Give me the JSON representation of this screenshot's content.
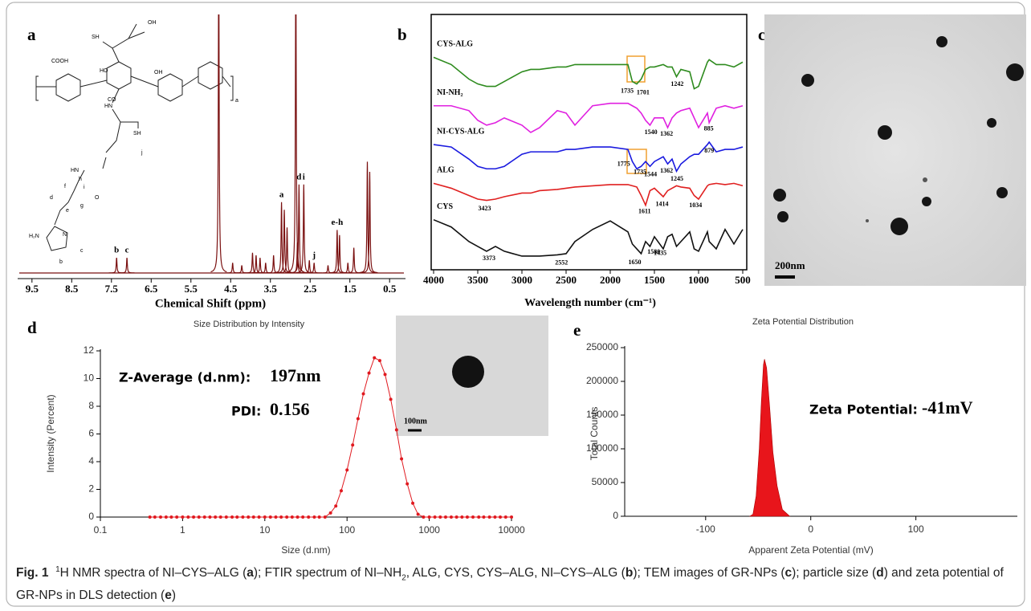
{
  "chart_data": [
    {
      "type": "spectrum",
      "panel": "a",
      "x_label": "Chemical Shift (ppm)",
      "color": "#7a1010",
      "xlim": [
        9.86,
        0.1
      ],
      "xticks": [
        9.5,
        8.5,
        7.5,
        6.5,
        5.5,
        4.5,
        3.5,
        2.5,
        1.5,
        0.5
      ],
      "ylim": [
        0,
        100
      ],
      "peaks": [
        {
          "x": 7.37,
          "height": 6
        },
        {
          "x": 7.11,
          "height": 6
        },
        {
          "x": 4.8,
          "height": 130
        },
        {
          "x": 4.45,
          "height": 4
        },
        {
          "x": 4.22,
          "height": 3
        },
        {
          "x": 3.95,
          "height": 8
        },
        {
          "x": 3.86,
          "height": 7
        },
        {
          "x": 3.76,
          "height": 6
        },
        {
          "x": 3.62,
          "height": 4
        },
        {
          "x": 3.42,
          "height": 7
        },
        {
          "x": 3.22,
          "height": 28
        },
        {
          "x": 3.15,
          "height": 25
        },
        {
          "x": 3.08,
          "height": 18
        },
        {
          "x": 2.86,
          "height": 130
        },
        {
          "x": 2.82,
          "height": 12
        },
        {
          "x": 2.78,
          "height": 35
        },
        {
          "x": 2.66,
          "height": 35
        },
        {
          "x": 2.52,
          "height": 5
        },
        {
          "x": 2.4,
          "height": 4
        },
        {
          "x": 2.05,
          "height": 3
        },
        {
          "x": 1.82,
          "height": 17
        },
        {
          "x": 1.76,
          "height": 15
        },
        {
          "x": 1.55,
          "height": 4
        },
        {
          "x": 1.4,
          "height": 10
        },
        {
          "x": 1.06,
          "height": 44
        },
        {
          "x": 1.0,
          "height": 40
        }
      ],
      "annotations": [
        {
          "x": 7.37,
          "label": "b"
        },
        {
          "x": 7.11,
          "label": "c"
        },
        {
          "x": 3.22,
          "label": "a"
        },
        {
          "x": 2.78,
          "label": "d"
        },
        {
          "x": 2.66,
          "label": "i"
        },
        {
          "x": 2.4,
          "label": "j"
        },
        {
          "x": 1.82,
          "label": "e-h"
        }
      ],
      "structure_labels": [
        "SH",
        "OH",
        "COOH",
        "HO",
        "OH",
        "CO",
        "HN",
        "SH",
        "j",
        "HN",
        "O",
        "h",
        "i",
        "g",
        "f",
        "e",
        "d",
        "H₂N",
        "N",
        "c",
        "b",
        "a"
      ]
    },
    {
      "type": "line",
      "panel": "b",
      "x_label": "Wavelength number (cm⁻¹)",
      "xlim": [
        4000,
        500
      ],
      "xticks": [
        4000,
        3500,
        3000,
        2500,
        2000,
        1500,
        1000,
        500
      ],
      "ylim": [
        0,
        100
      ],
      "x": [
        4000,
        3800,
        3600,
        3500,
        3400,
        3300,
        3200,
        3000,
        2900,
        2800,
        2600,
        2500,
        2400,
        2200,
        2000,
        1800,
        1750,
        1700,
        1650,
        1600,
        1550,
        1500,
        1400,
        1350,
        1300,
        1250,
        1200,
        1100,
        1050,
        1000,
        900,
        880,
        800,
        700,
        600,
        500
      ],
      "series": [
        {
          "name": "CYS-ALG",
          "color": "#2e8b1e",
          "peaks": [
            1735,
            1701,
            1242
          ],
          "values": [
            83,
            80,
            74,
            72,
            71,
            71,
            73,
            77,
            78,
            78,
            79,
            79,
            80,
            80,
            80,
            80,
            73,
            72,
            74,
            78,
            79,
            79,
            80,
            79,
            79,
            75,
            78,
            77,
            70,
            71,
            81,
            82,
            80,
            80,
            79,
            81
          ]
        },
        {
          "name": "NI-NH₂",
          "color": "#e020e0",
          "peaks": [
            1540,
            1362,
            885
          ],
          "values": [
            63,
            63,
            61,
            57,
            55,
            56,
            58,
            55,
            52,
            54,
            61,
            60,
            55,
            63,
            64,
            64,
            63,
            62,
            60,
            57,
            55,
            58,
            58,
            54,
            58,
            60,
            61,
            62,
            58,
            54,
            60,
            56,
            62,
            63,
            62,
            63
          ]
        },
        {
          "name": "NI-CYS-ALG",
          "color": "#1a1adf",
          "peaks": [
            1775,
            1735,
            1544,
            1362,
            1245,
            879
          ],
          "values": [
            47,
            46,
            41,
            38,
            37,
            37,
            38,
            43,
            44,
            44,
            44,
            45,
            45,
            46,
            46,
            45,
            40,
            37,
            38,
            40,
            38,
            40,
            42,
            39,
            41,
            36,
            39,
            42,
            43,
            43,
            47,
            48,
            44,
            45,
            45,
            46
          ]
        },
        {
          "name": "ALG",
          "color": "#e02020",
          "peaks": [
            3423,
            1611,
            1414,
            1034
          ],
          "values": [
            31,
            29,
            26,
            24.5,
            24,
            24.5,
            25.5,
            27,
            27,
            28,
            28.5,
            29,
            29.5,
            30,
            30.5,
            30.5,
            30,
            29.5,
            26,
            22,
            28,
            29,
            25.5,
            28,
            29,
            30,
            29.5,
            29,
            26,
            24.5,
            30,
            30.5,
            31,
            30.5,
            31,
            30
          ]
        },
        {
          "name": "CYS",
          "color": "#111111",
          "peaks": [
            3373,
            2552,
            1650,
            1580,
            1435
          ],
          "values": [
            16,
            13,
            7,
            5,
            3,
            5,
            3,
            1,
            1,
            1,
            1.5,
            2,
            7,
            12,
            15.5,
            11,
            6,
            4,
            2,
            7,
            5,
            9,
            4,
            9,
            10,
            5,
            7,
            11,
            4,
            3,
            11,
            7,
            4,
            12,
            6,
            12
          ]
        }
      ]
    },
    {
      "type": "image",
      "panel": "c",
      "scale_bar": "200nm"
    },
    {
      "type": "line",
      "panel": "d",
      "title": "Size Distribution by Intensity",
      "x_label": "Size (d.nm)",
      "y_label": "Intensity (Percent)",
      "color": "#e0191f",
      "markers": true,
      "log_x": true,
      "xlim": [
        0.1,
        10000
      ],
      "xticks": [
        0.1,
        1,
        10,
        100,
        1000,
        10000
      ],
      "ylim": [
        0,
        12
      ],
      "yticks": [
        0,
        2,
        4,
        6,
        8,
        10,
        12
      ],
      "x": [
        0.4,
        0.46,
        0.54,
        0.63,
        0.73,
        0.85,
        1,
        1.17,
        1.36,
        1.58,
        1.85,
        2.15,
        2.5,
        2.9,
        3.4,
        4,
        4.6,
        5.4,
        6.3,
        7.3,
        8.5,
        10,
        11.7,
        13.6,
        15.8,
        18.5,
        21.5,
        25,
        29,
        34,
        40,
        46,
        54,
        63,
        73,
        85,
        100,
        117,
        136,
        158,
        185,
        215,
        250,
        290,
        340,
        400,
        460,
        540,
        630,
        730,
        850,
        1000,
        1170,
        1360,
        1580,
        1850,
        2150,
        2500,
        2900,
        3400,
        4000,
        4600,
        5400,
        6300,
        7300,
        8500,
        10000
      ],
      "values": [
        0,
        0,
        0,
        0,
        0,
        0,
        0,
        0,
        0,
        0,
        0,
        0,
        0,
        0,
        0,
        0,
        0,
        0,
        0,
        0,
        0,
        0,
        0,
        0,
        0,
        0,
        0,
        0,
        0,
        0,
        0,
        0,
        0,
        0.3,
        0.8,
        1.9,
        3.4,
        5.2,
        7.1,
        8.9,
        10.4,
        11.5,
        11.3,
        10.3,
        8.5,
        6.3,
        4.2,
        2.4,
        1.0,
        0.2,
        0,
        0,
        0,
        0,
        0,
        0,
        0,
        0,
        0,
        0,
        0,
        0,
        0,
        0,
        0,
        0,
        0
      ],
      "annotations": [
        {
          "label": "Z-Average (d.nm):",
          "value": "197nm"
        },
        {
          "label": "PDI:",
          "value": "0.156"
        }
      ],
      "inset": {
        "scale_bar": "100nm"
      }
    },
    {
      "type": "area",
      "panel": "e",
      "title": "Zeta Potential Distribution",
      "x_label": "Apparent Zeta Potential (mV)",
      "y_label": "Total Counts",
      "color": "#e8151b",
      "xlim": [
        -177,
        195
      ],
      "xticks": [
        -100,
        0,
        100
      ],
      "ylim": [
        0,
        250000
      ],
      "yticks": [
        0,
        50000,
        100000,
        150000,
        200000,
        250000
      ],
      "x": [
        -58,
        -55,
        -52,
        -49,
        -47,
        -45,
        -44,
        -42,
        -39,
        -36,
        -32,
        -27,
        -20
      ],
      "values": [
        0,
        3000,
        30000,
        100000,
        170000,
        225000,
        233000,
        220000,
        160000,
        95000,
        45000,
        10000,
        0
      ],
      "annotations": [
        {
          "label": "Zeta Potential:",
          "value": "-41mV"
        }
      ]
    }
  ],
  "caption": {
    "label": "Fig. 1",
    "parts": [
      "1",
      "H NMR spectra of NI–CYS–ALG (",
      "a",
      "); FTIR spectrum of NI–NH",
      "2",
      ", ALG, CYS, CYS–ALG, NI–CYS–ALG (",
      "b",
      "); TEM images of GR-NPs (",
      "c",
      "); particle size (",
      "d",
      ") and zeta potential of GR-NPs in DLS detection (",
      "e",
      ")"
    ]
  }
}
